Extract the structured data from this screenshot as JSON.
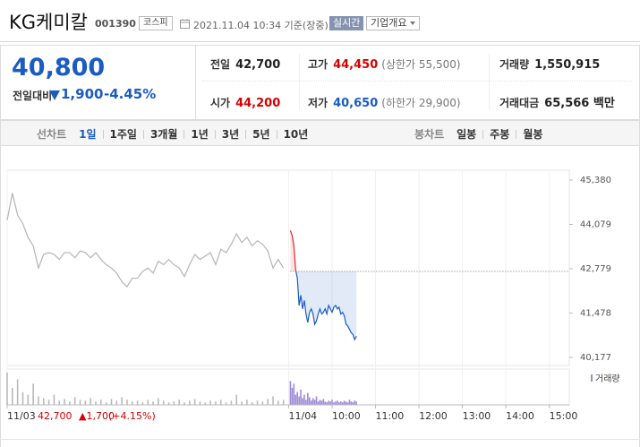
{
  "header": {
    "name": "KG케미칼",
    "code": "001390",
    "market": "코스피",
    "timestamp": "2021.11.04 10:34 기준(장중)",
    "realtime": "실시간",
    "company_info": "기업개요"
  },
  "quote": {
    "price": "40,800",
    "change_label": "전일대비",
    "change": "1,900",
    "change_rate": "-4.45%",
    "color": "#1a5bc4",
    "stats": [
      {
        "label": "전일",
        "value": "42,700",
        "color": "#222222"
      },
      {
        "label": "고가",
        "value": "44,450",
        "note": "(상한가 55,500)",
        "color": "#d60000"
      },
      {
        "label": "거래량",
        "value": "1,550,915",
        "color": "#222222"
      },
      {
        "label": "시가",
        "value": "44,200",
        "color": "#d60000"
      },
      {
        "label": "저가",
        "value": "40,650",
        "note": "(하한가 29,900)",
        "color": "#1a5bc4"
      },
      {
        "label": "거래대금",
        "value": "65,566 백만",
        "color": "#222222"
      }
    ]
  },
  "tabs": {
    "line_label": "선차트",
    "line_periods": [
      "1일",
      "1주일",
      "3개월",
      "1년",
      "3년",
      "5년",
      "10년"
    ],
    "active": 0,
    "candle_label": "봉차트",
    "candle_periods": [
      "일봉",
      "주봉",
      "월봉"
    ]
  },
  "chart_data": {
    "type": "line",
    "xlim": [
      2.52,
      15.46
    ],
    "ylim": [
      39940,
      45669
    ],
    "xticks": [
      {
        "value": 2.52,
        "label": "11/03"
      },
      {
        "value": 9,
        "label": "11/04"
      },
      {
        "value": 10,
        "label": "10:00"
      },
      {
        "value": 11,
        "label": "11:00"
      },
      {
        "value": 12,
        "label": "12:00"
      },
      {
        "value": 13,
        "label": "13:00"
      },
      {
        "value": 14,
        "label": "14:00"
      },
      {
        "value": 15,
        "label": "15:00"
      }
    ],
    "yticks": [
      {
        "value": 45380,
        "label": "45,380"
      },
      {
        "value": 44079,
        "label": "44,079"
      },
      {
        "value": 42779,
        "label": "42,779"
      },
      {
        "value": 41478,
        "label": "41,478"
      },
      {
        "value": 40177,
        "label": "40,177"
      }
    ],
    "baseline": 42700,
    "up_color": "#e0282a",
    "down_color": "#1a5bc4",
    "volume_label": "거래량",
    "volume_ylim": [
      0,
      40
    ],
    "prev_close": "42,700",
    "prev_change": "▲1,700",
    "prev_rate": "(+4.15%)",
    "prev_color": "#d60000",
    "series": [
      {
        "color": "#b4b4b4",
        "volume_color": "#b9b9b9",
        "area": false,
        "x": [
          2.52,
          2.64,
          2.76,
          2.88,
          3.0,
          3.12,
          3.24,
          3.36,
          3.48,
          3.6,
          3.72,
          3.84,
          3.96,
          4.08,
          4.2,
          4.32,
          4.44,
          4.56,
          4.68,
          4.8,
          4.92,
          5.04,
          5.16,
          5.28,
          5.4,
          5.52,
          5.64,
          5.76,
          5.88,
          6.0,
          6.12,
          6.24,
          6.36,
          6.48,
          6.6,
          6.72,
          6.84,
          6.96,
          7.08,
          7.2,
          7.32,
          7.44,
          7.56,
          7.68,
          7.8,
          7.92,
          8.04,
          8.16,
          8.28,
          8.4,
          8.52,
          8.64,
          8.76,
          8.88
        ],
        "values": [
          44200,
          45000,
          44350,
          44100,
          43700,
          43450,
          42800,
          43200,
          43250,
          43200,
          43050,
          43250,
          43250,
          43100,
          43300,
          43250,
          43100,
          43250,
          43050,
          42900,
          42800,
          42650,
          42400,
          42250,
          42500,
          42500,
          42700,
          42800,
          42650,
          43000,
          42900,
          43050,
          42900,
          42800,
          42550,
          42900,
          43200,
          43050,
          43150,
          43250,
          42900,
          43350,
          43250,
          43500,
          43800,
          43550,
          43700,
          43450,
          43600,
          43500,
          43300,
          42800,
          43050,
          42800
        ],
        "volume": [
          38,
          20,
          30,
          15,
          12,
          25,
          10,
          8,
          6,
          12,
          5,
          7,
          4,
          9,
          6,
          5,
          8,
          4,
          6,
          3,
          7,
          5,
          9,
          6,
          4,
          5,
          3,
          6,
          4,
          8,
          5,
          3,
          4,
          6,
          3,
          5,
          7,
          4,
          3,
          5,
          4,
          6,
          3,
          5,
          12,
          4,
          6,
          3,
          5,
          4,
          7,
          10,
          5,
          6
        ]
      },
      {
        "color": "#1a5bc4",
        "volume_color": "#9d8bd6",
        "area": true,
        "x": [
          9.04,
          9.08,
          9.12,
          9.16,
          9.2,
          9.24,
          9.28,
          9.32,
          9.36,
          9.4,
          9.44,
          9.48,
          9.52,
          9.56,
          9.6,
          9.64,
          9.68,
          9.72,
          9.76,
          9.8,
          9.84,
          9.88,
          9.92,
          9.96,
          10.0,
          10.04,
          10.08,
          10.12,
          10.16,
          10.2,
          10.24,
          10.28,
          10.32,
          10.36,
          10.4,
          10.44,
          10.48,
          10.52,
          10.56
        ],
        "values": [
          43900,
          43750,
          43450,
          42750,
          42500,
          41700,
          42000,
          41600,
          41850,
          41450,
          41200,
          41500,
          41600,
          41450,
          41150,
          41250,
          41450,
          41600,
          41450,
          41500,
          41600,
          41450,
          41700,
          41600,
          41500,
          41650,
          41700,
          41600,
          41650,
          41450,
          41500,
          41400,
          41150,
          41100,
          41000,
          40900,
          40850,
          40700,
          40800
        ],
        "volume": [
          28,
          20,
          25,
          12,
          15,
          10,
          18,
          8,
          12,
          6,
          14,
          9,
          5,
          8,
          6,
          10,
          4,
          6,
          5,
          7,
          4,
          3,
          5,
          4,
          6,
          3,
          4,
          5,
          3,
          4,
          3,
          5,
          4,
          3,
          6,
          4,
          3,
          5,
          4
        ]
      }
    ]
  }
}
